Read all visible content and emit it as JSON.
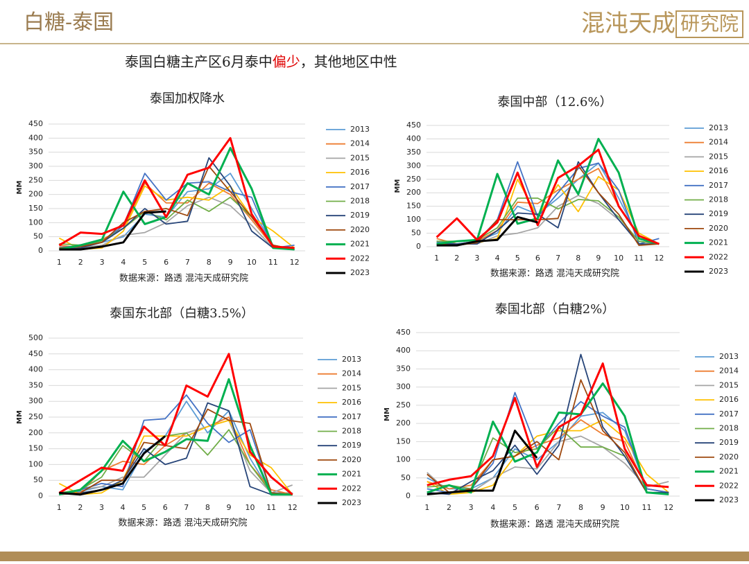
{
  "header": {
    "title": "白糖-泰国",
    "logo": "混沌天成",
    "logo_box": "研究院"
  },
  "subtitle": {
    "before": "泰国白糖主产区6月泰中",
    "highlight": "偏少",
    "after": "，其他地区中性"
  },
  "chart_data": [
    {
      "type": "line",
      "title": "泰国加权降水",
      "ylabel": "MM",
      "source": "数据来源：路透 混沌天成研究院",
      "categories": [
        "1",
        "2",
        "3",
        "4",
        "5",
        "6",
        "7",
        "8",
        "9",
        "10",
        "11",
        "12"
      ],
      "ylim": [
        0,
        450
      ],
      "yticks": [
        0,
        50,
        100,
        150,
        200,
        250,
        300,
        350,
        400,
        450
      ],
      "series": [
        {
          "name": "2013",
          "color": "#5b9bd5",
          "width": 1.8,
          "values": [
            10,
            15,
            30,
            50,
            130,
            120,
            210,
            220,
            275,
            150,
            20,
            5
          ]
        },
        {
          "name": "2014",
          "color": "#ed7d31",
          "width": 1.8,
          "values": [
            20,
            10,
            40,
            80,
            240,
            170,
            170,
            240,
            200,
            110,
            15,
            5
          ]
        },
        {
          "name": "2015",
          "color": "#a5a5a5",
          "width": 1.8,
          "values": [
            15,
            10,
            20,
            55,
            65,
            100,
            160,
            190,
            160,
            90,
            10,
            5
          ]
        },
        {
          "name": "2016",
          "color": "#ffc000",
          "width": 1.8,
          "values": [
            45,
            5,
            10,
            70,
            230,
            180,
            190,
            180,
            230,
            120,
            70,
            10
          ]
        },
        {
          "name": "2017",
          "color": "#4472c4",
          "width": 1.8,
          "values": [
            10,
            20,
            30,
            90,
            275,
            180,
            240,
            245,
            210,
            190,
            10,
            20
          ]
        },
        {
          "name": "2018",
          "color": "#70ad47",
          "width": 1.8,
          "values": [
            25,
            20,
            35,
            80,
            140,
            110,
            180,
            140,
            190,
            120,
            20,
            5
          ]
        },
        {
          "name": "2019",
          "color": "#264478",
          "width": 1.8,
          "values": [
            5,
            10,
            30,
            80,
            150,
            95,
            105,
            330,
            230,
            70,
            10,
            5
          ]
        },
        {
          "name": "2020",
          "color": "#9e480e",
          "width": 1.8,
          "values": [
            10,
            15,
            30,
            100,
            140,
            150,
            125,
            300,
            210,
            120,
            20,
            5
          ]
        },
        {
          "name": "2021",
          "color": "#00b050",
          "width": 3,
          "values": [
            5,
            20,
            40,
            210,
            95,
            120,
            240,
            200,
            365,
            220,
            10,
            5
          ]
        },
        {
          "name": "2022",
          "color": "#ff0000",
          "width": 3,
          "values": [
            20,
            65,
            60,
            90,
            250,
            120,
            270,
            295,
            400,
            130,
            15,
            10
          ]
        },
        {
          "name": "2023",
          "color": "#000000",
          "width": 3,
          "values": [
            5,
            5,
            15,
            30,
            135,
            140,
            null,
            null,
            null,
            null,
            null,
            null
          ]
        }
      ]
    },
    {
      "type": "line",
      "title": "泰国中部（12.6%）",
      "ylabel": "MM",
      "source": "数据来源：路透 混沌天成研究院",
      "categories": [
        "1",
        "2",
        "3",
        "4",
        "5",
        "6",
        "7",
        "8",
        "9",
        "10",
        "11",
        "12"
      ],
      "ylim": [
        0,
        450
      ],
      "yticks": [
        0,
        50,
        100,
        150,
        200,
        250,
        300,
        350,
        400,
        450
      ],
      "series": [
        {
          "name": "2013",
          "color": "#5b9bd5",
          "width": 1.8,
          "values": [
            20,
            10,
            20,
            50,
            150,
            120,
            180,
            250,
            310,
            180,
            30,
            10
          ]
        },
        {
          "name": "2014",
          "color": "#ed7d31",
          "width": 1.8,
          "values": [
            30,
            10,
            20,
            60,
            165,
            160,
            210,
            250,
            290,
            150,
            40,
            10
          ]
        },
        {
          "name": "2015",
          "color": "#a5a5a5",
          "width": 1.8,
          "values": [
            15,
            10,
            10,
            40,
            50,
            70,
            150,
            190,
            160,
            100,
            20,
            10
          ]
        },
        {
          "name": "2016",
          "color": "#ffc000",
          "width": 1.8,
          "values": [
            10,
            10,
            15,
            30,
            250,
            110,
            230,
            130,
            260,
            210,
            50,
            10
          ]
        },
        {
          "name": "2017",
          "color": "#4472c4",
          "width": 1.8,
          "values": [
            15,
            10,
            20,
            100,
            315,
            110,
            200,
            290,
            310,
            210,
            10,
            30
          ]
        },
        {
          "name": "2018",
          "color": "#70ad47",
          "width": 1.8,
          "values": [
            20,
            20,
            25,
            70,
            180,
            180,
            140,
            175,
            170,
            110,
            20,
            10
          ]
        },
        {
          "name": "2019",
          "color": "#264478",
          "width": 1.8,
          "values": [
            10,
            10,
            10,
            60,
            125,
            120,
            70,
            315,
            200,
            100,
            10,
            10
          ]
        },
        {
          "name": "2020",
          "color": "#9e480e",
          "width": 1.8,
          "values": [
            10,
            5,
            15,
            100,
            100,
            100,
            105,
            300,
            200,
            120,
            5,
            10
          ]
        },
        {
          "name": "2021",
          "color": "#00b050",
          "width": 3,
          "values": [
            10,
            20,
            25,
            270,
            85,
            105,
            320,
            195,
            400,
            275,
            30,
            10
          ]
        },
        {
          "name": "2022",
          "color": "#ff0000",
          "width": 3,
          "values": [
            35,
            105,
            25,
            90,
            275,
            80,
            255,
            300,
            360,
            150,
            40,
            10
          ]
        },
        {
          "name": "2023",
          "color": "#000000",
          "width": 3,
          "values": [
            5,
            5,
            20,
            25,
            110,
            90,
            null,
            null,
            null,
            null,
            null,
            null
          ]
        }
      ]
    },
    {
      "type": "line",
      "title": "泰国东北部（白糖3.5%）",
      "ylabel": "MM",
      "source": "数据来源：路透 混沌天成研究院",
      "categories": [
        "1",
        "2",
        "3",
        "4",
        "5",
        "6",
        "7",
        "8",
        "9",
        "10",
        "11",
        "12"
      ],
      "ylim": [
        0,
        500
      ],
      "yticks": [
        0,
        50,
        100,
        150,
        200,
        250,
        300,
        350,
        400,
        450,
        500
      ],
      "series": [
        {
          "name": "2013",
          "color": "#5b9bd5",
          "width": 1.8,
          "values": [
            10,
            15,
            30,
            20,
            140,
            190,
            300,
            200,
            270,
            120,
            10,
            10
          ]
        },
        {
          "name": "2014",
          "color": "#ed7d31",
          "width": 1.8,
          "values": [
            10,
            10,
            80,
            110,
            100,
            160,
            200,
            220,
            250,
            100,
            20,
            5
          ]
        },
        {
          "name": "2015",
          "color": "#a5a5a5",
          "width": 1.8,
          "values": [
            5,
            20,
            30,
            60,
            60,
            130,
            200,
            220,
            240,
            80,
            10,
            35
          ]
        },
        {
          "name": "2016",
          "color": "#ffc000",
          "width": 1.8,
          "values": [
            40,
            5,
            10,
            50,
            190,
            190,
            190,
            220,
            240,
            130,
            90,
            5
          ]
        },
        {
          "name": "2017",
          "color": "#4472c4",
          "width": 1.8,
          "values": [
            10,
            20,
            40,
            30,
            240,
            245,
            320,
            230,
            170,
            210,
            10,
            5
          ]
        },
        {
          "name": "2018",
          "color": "#70ad47",
          "width": 1.8,
          "values": [
            10,
            20,
            60,
            160,
            110,
            190,
            200,
            130,
            210,
            100,
            10,
            5
          ]
        },
        {
          "name": "2019",
          "color": "#264478",
          "width": 1.8,
          "values": [
            5,
            10,
            20,
            50,
            150,
            100,
            120,
            295,
            270,
            30,
            5,
            5
          ]
        },
        {
          "name": "2020",
          "color": "#9e480e",
          "width": 1.8,
          "values": [
            5,
            10,
            50,
            50,
            170,
            160,
            150,
            275,
            240,
            230,
            10,
            5
          ]
        },
        {
          "name": "2021",
          "color": "#00b050",
          "width": 3,
          "values": [
            5,
            20,
            80,
            175,
            110,
            140,
            180,
            175,
            370,
            160,
            5,
            5
          ]
        },
        {
          "name": "2022",
          "color": "#ff0000",
          "width": 3,
          "values": [
            10,
            50,
            90,
            80,
            220,
            160,
            350,
            315,
            450,
            140,
            60,
            5
          ]
        },
        {
          "name": "2023",
          "color": "#000000",
          "width": 3,
          "values": [
            10,
            5,
            20,
            40,
            135,
            190,
            null,
            null,
            null,
            null,
            null,
            null
          ]
        }
      ]
    },
    {
      "type": "line",
      "title": "泰国北部（白糖2%）",
      "ylabel": "MM",
      "source": "数据来源：路透 混沌天成研究院",
      "categories": [
        "1",
        "2",
        "3",
        "4",
        "5",
        "6",
        "7",
        "8",
        "9",
        "10",
        "11",
        "12"
      ],
      "ylim": [
        0,
        450
      ],
      "yticks": [
        0,
        50,
        100,
        150,
        200,
        250,
        300,
        350,
        400,
        450
      ],
      "series": [
        {
          "name": "2013",
          "color": "#5b9bd5",
          "width": 1.8,
          "values": [
            50,
            20,
            20,
            50,
            130,
            100,
            150,
            220,
            230,
            180,
            20,
            10
          ]
        },
        {
          "name": "2014",
          "color": "#ed7d31",
          "width": 1.8,
          "values": [
            40,
            20,
            30,
            100,
            110,
            140,
            160,
            210,
            170,
            150,
            20,
            10
          ]
        },
        {
          "name": "2015",
          "color": "#a5a5a5",
          "width": 1.8,
          "values": [
            65,
            10,
            10,
            50,
            80,
            75,
            150,
            165,
            135,
            90,
            25,
            40
          ]
        },
        {
          "name": "2016",
          "color": "#ffc000",
          "width": 1.8,
          "values": [
            40,
            5,
            10,
            30,
            110,
            165,
            180,
            180,
            210,
            160,
            60,
            10
          ]
        },
        {
          "name": "2017",
          "color": "#4472c4",
          "width": 1.8,
          "values": [
            20,
            10,
            20,
            90,
            285,
            130,
            200,
            260,
            220,
            190,
            20,
            10
          ]
        },
        {
          "name": "2018",
          "color": "#70ad47",
          "width": 1.8,
          "values": [
            25,
            30,
            20,
            160,
            120,
            130,
            190,
            135,
            135,
            110,
            10,
            5
          ]
        },
        {
          "name": "2019",
          "color": "#264478",
          "width": 1.8,
          "values": [
            10,
            5,
            40,
            70,
            140,
            60,
            140,
            390,
            190,
            110,
            10,
            10
          ]
        },
        {
          "name": "2020",
          "color": "#9e480e",
          "width": 1.8,
          "values": [
            60,
            10,
            20,
            100,
            110,
            150,
            100,
            320,
            180,
            120,
            10,
            5
          ]
        },
        {
          "name": "2021",
          "color": "#00b050",
          "width": 3,
          "values": [
            10,
            30,
            10,
            205,
            95,
            120,
            230,
            225,
            310,
            220,
            10,
            5
          ]
        },
        {
          "name": "2022",
          "color": "#ff0000",
          "width": 3,
          "values": [
            30,
            45,
            55,
            110,
            270,
            80,
            190,
            225,
            365,
            130,
            30,
            25
          ]
        },
        {
          "name": "2023",
          "color": "#000000",
          "width": 3,
          "values": [
            5,
            10,
            15,
            15,
            180,
            105,
            null,
            null,
            null,
            null,
            null,
            null
          ]
        }
      ]
    }
  ]
}
